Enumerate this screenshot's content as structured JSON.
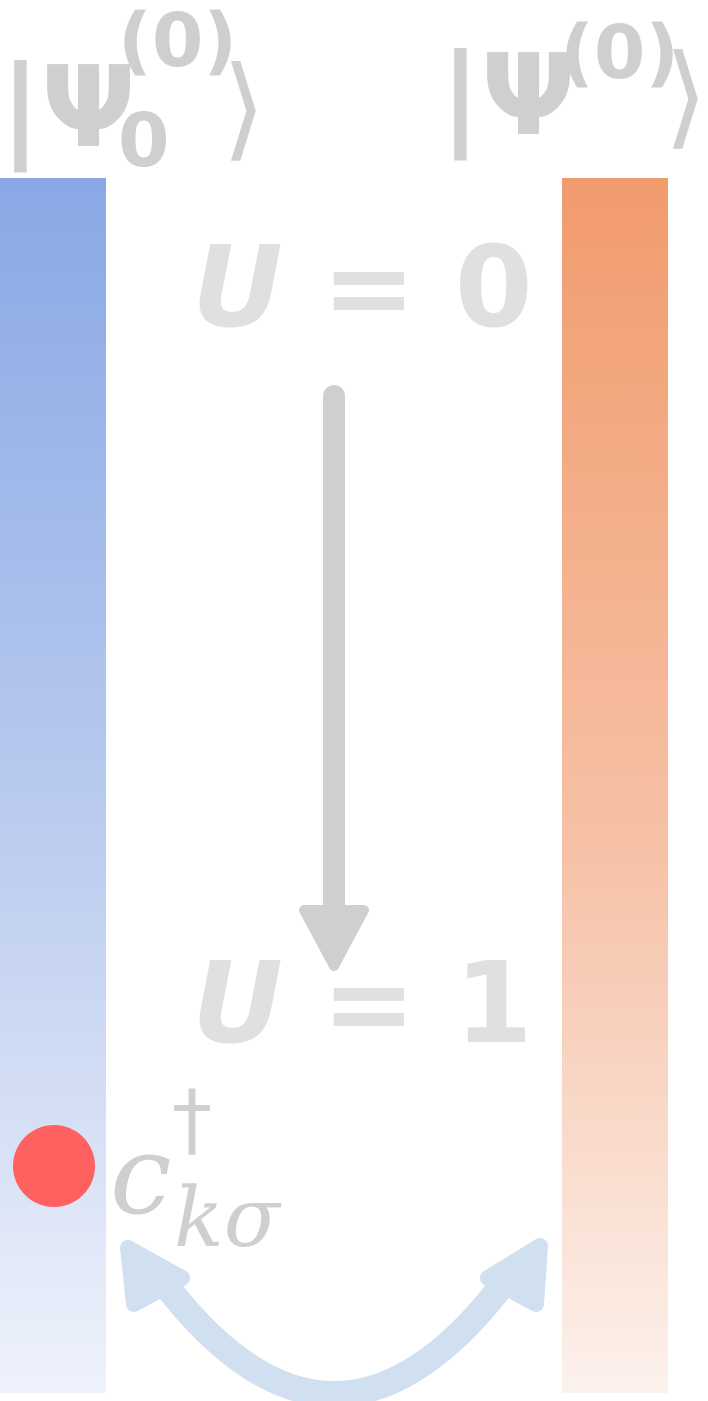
{
  "state_left": {
    "symbol": "|Ψ",
    "superscript": "(0)",
    "subscript": "0",
    "close": "⟩"
  },
  "state_right": {
    "symbol": "|Ψ",
    "superscript": "(0)",
    "close": "⟩"
  },
  "evolution": {
    "start": {
      "variable": "U",
      "relation": " = ",
      "value": "0"
    },
    "end": {
      "variable": "U",
      "relation": " = ",
      "value": "1"
    }
  },
  "operator": {
    "base": "c",
    "dagger": "†",
    "subscript": "kσ"
  },
  "colors": {
    "left_bar_top": "#89a8e5",
    "left_bar_bottom": "#eef2fb",
    "right_bar_top": "#f19b6d",
    "right_bar_bottom": "#fcf1ec",
    "label_gray": "#cfcfcf",
    "arrow_gray": "#cfcfcf",
    "particle": "#ff6161",
    "exchange_arrow": "#d0e0f0"
  },
  "icons": {
    "evolution_arrow": "arrow-down-icon",
    "particle": "particle-dot-icon",
    "exchange": "double-arrow-curve-icon"
  }
}
